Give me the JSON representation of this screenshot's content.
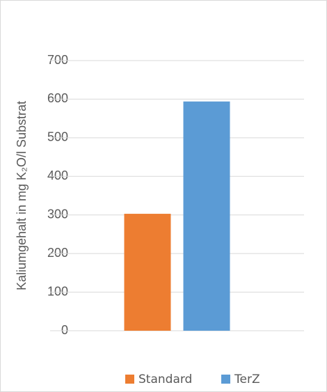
{
  "chart_data": {
    "type": "bar",
    "y_label": "Kaliumgehalt in mg K₂O/l Substrat",
    "categories": [
      null
    ],
    "series": [
      {
        "name": "Standard",
        "color": "#ed7d31",
        "values": [
          303
        ]
      },
      {
        "name": "TerZ",
        "color": "#5b9bd5",
        "values": [
          594
        ]
      }
    ],
    "ylim": [
      0,
      700
    ],
    "yticks": [
      0,
      100,
      200,
      300,
      400,
      500,
      600,
      700
    ],
    "grid": true,
    "legend": "bottom"
  }
}
